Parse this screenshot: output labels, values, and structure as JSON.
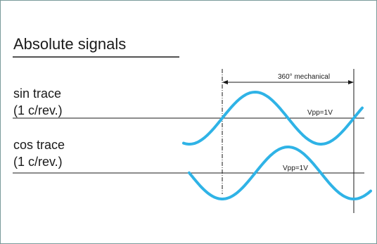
{
  "title": "Absolute signals",
  "traces": [
    {
      "name": "sin trace",
      "sub": "(1 c/rev.)",
      "amplitude_label": "Vpp=1V"
    },
    {
      "name": "cos trace",
      "sub": "(1 c/rev.)",
      "amplitude_label": "Vpp=1V"
    }
  ],
  "span_label": "360° mechanical",
  "colors": {
    "wave": "#2fb3e6",
    "line": "#1a1a1a",
    "frame": "#7a9a9a"
  }
}
